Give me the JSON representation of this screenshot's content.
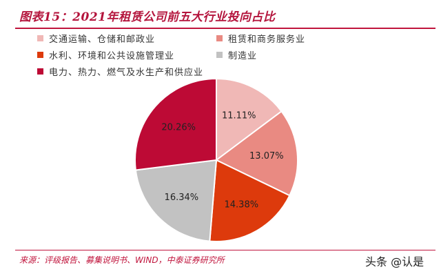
{
  "header": {
    "title": "图表15：2021年租赁公司前五大行业投向占比"
  },
  "source": {
    "text": "来源：评级报告、募集说明书、WIND，中泰证券研究所"
  },
  "watermark": {
    "text": "头条 @认是"
  },
  "chart_data": {
    "type": "pie",
    "title": "图表15：2021年租赁公司前五大行业投向占比",
    "legend_position": "top-left",
    "slices": [
      {
        "name": "交通运输、仓储和邮政业",
        "value": 11.11,
        "label": "11.11%",
        "color": "#f0b8b6"
      },
      {
        "name": "租赁和商务服务业",
        "value": 13.07,
        "label": "13.07%",
        "color": "#e98a82"
      },
      {
        "name": "水利、环境和公共设施管理业",
        "value": 14.38,
        "label": "14.38%",
        "color": "#dd3a0c"
      },
      {
        "name": "制造业",
        "value": 16.34,
        "label": "16.34%",
        "color": "#c2c2c2"
      },
      {
        "name": "电力、热力、燃气及水生产和供应业",
        "value": 20.26,
        "label": "20.26%",
        "color": "#bd0a35"
      }
    ]
  }
}
